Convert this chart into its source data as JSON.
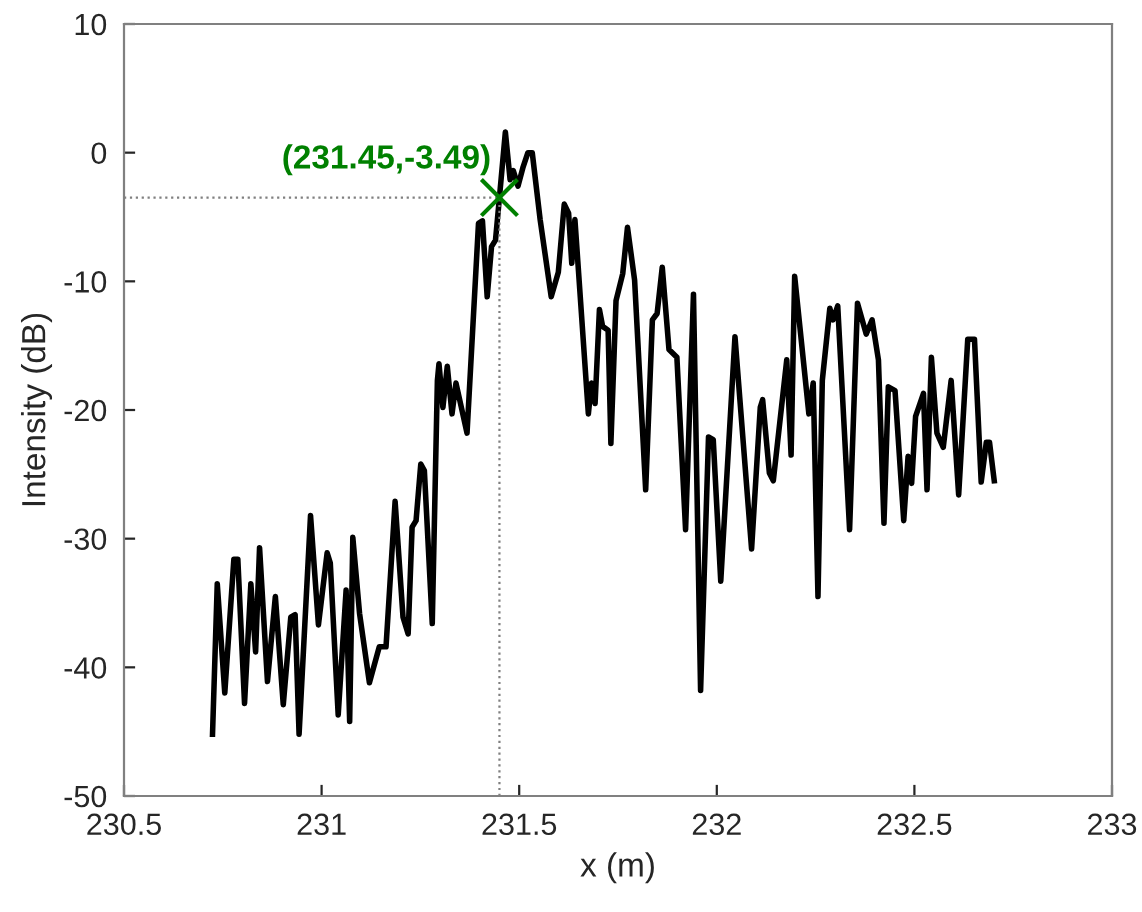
{
  "chart_data": {
    "type": "line",
    "xlabel": "x (m)",
    "ylabel": "Intensity (dB)",
    "xlim": [
      230.5,
      233
    ],
    "xticks": [
      230.5,
      231,
      231.5,
      232,
      232.5,
      233
    ],
    "ylim": [
      -50,
      10
    ],
    "yticks": [
      -50,
      -40,
      -30,
      -20,
      -10,
      0,
      10
    ],
    "grid": false,
    "marker": "none",
    "line_style": "solid",
    "series": [
      {
        "color": "#000000",
        "x": [
          230.724,
          230.736,
          230.755,
          230.778,
          230.788,
          230.805,
          230.821,
          230.833,
          230.843,
          230.863,
          230.883,
          230.903,
          230.922,
          230.933,
          230.943,
          230.972,
          230.992,
          231.014,
          231.022,
          231.042,
          231.062,
          231.071,
          231.079,
          231.096,
          231.121,
          231.146,
          231.163,
          231.186,
          231.206,
          231.219,
          231.229,
          231.239,
          231.251,
          231.26,
          231.28,
          231.293,
          231.297,
          231.307,
          231.318,
          231.33,
          231.34,
          231.368,
          231.397,
          231.407,
          231.419,
          231.43,
          231.44,
          231.45,
          231.465,
          231.477,
          231.485,
          231.497,
          231.51,
          231.522,
          231.533,
          231.553,
          231.581,
          231.599,
          231.614,
          231.625,
          231.633,
          231.641,
          231.675,
          231.683,
          231.692,
          231.703,
          231.711,
          231.725,
          231.732,
          231.745,
          231.762,
          231.774,
          231.792,
          231.82,
          231.837,
          231.849,
          231.862,
          231.879,
          231.899,
          231.921,
          231.941,
          231.959,
          231.979,
          231.991,
          232.01,
          232.046,
          232.088,
          232.11,
          232.116,
          232.133,
          232.143,
          232.177,
          232.188,
          232.197,
          232.233,
          232.244,
          232.256,
          232.267,
          232.286,
          232.294,
          232.306,
          232.336,
          232.356,
          232.378,
          232.393,
          232.409,
          232.423,
          232.434,
          232.451,
          232.473,
          232.484,
          232.493,
          232.503,
          232.523,
          232.532,
          232.543,
          232.557,
          232.573,
          232.593,
          232.612,
          232.635,
          232.652,
          232.669,
          232.682,
          232.69,
          232.702
        ],
        "values": [
          -45.2,
          -33.5,
          -42.0,
          -31.6,
          -31.6,
          -42.8,
          -33.5,
          -38.8,
          -30.7,
          -41.1,
          -34.5,
          -42.9,
          -36.1,
          -35.9,
          -45.2,
          -28.2,
          -36.7,
          -31.1,
          -31.9,
          -43.7,
          -34.0,
          -44.2,
          -29.9,
          -35.8,
          -41.2,
          -38.4,
          -38.4,
          -27.1,
          -36.1,
          -37.4,
          -29.1,
          -28.6,
          -24.2,
          -24.7,
          -36.6,
          -17.7,
          -16.4,
          -19.8,
          -16.6,
          -20.3,
          -17.9,
          -21.8,
          -5.5,
          -5.3,
          -11.2,
          -7.3,
          -6.8,
          -3.49,
          1.6,
          -2.1,
          -1.4,
          -2.6,
          -1.1,
          0.0,
          0.0,
          -5.2,
          -11.2,
          -9.3,
          -4.0,
          -4.7,
          -8.6,
          -5.2,
          -20.3,
          -17.9,
          -19.5,
          -12.2,
          -13.5,
          -13.8,
          -22.6,
          -11.5,
          -9.4,
          -5.8,
          -9.9,
          -26.2,
          -13.0,
          -12.5,
          -8.9,
          -15.3,
          -15.9,
          -29.3,
          -11.0,
          -41.8,
          -22.1,
          -22.3,
          -33.3,
          -14.3,
          -30.8,
          -19.8,
          -19.2,
          -24.9,
          -25.5,
          -16.1,
          -23.5,
          -9.6,
          -20.3,
          -17.9,
          -34.5,
          -17.7,
          -12.1,
          -13.0,
          -11.9,
          -29.3,
          -11.7,
          -14.1,
          -13.0,
          -16.1,
          -28.8,
          -18.2,
          -18.5,
          -28.6,
          -23.6,
          -25.7,
          -20.5,
          -18.7,
          -26.2,
          -15.9,
          -21.8,
          -22.9,
          -17.7,
          -26.6,
          -14.5,
          -14.5,
          -25.6,
          -22.5,
          -22.5,
          -25.5
        ]
      }
    ],
    "ref_lines": [
      {
        "axis": "y",
        "value": -3.49,
        "color": "#808080",
        "line_style": "dotted"
      },
      {
        "axis": "x",
        "value": 231.45,
        "color": "#808080",
        "line_style": "dotted"
      }
    ],
    "annotations": [
      {
        "text": "(231.45,-3.49)",
        "x": 231.45,
        "y": -3.49
      }
    ]
  }
}
